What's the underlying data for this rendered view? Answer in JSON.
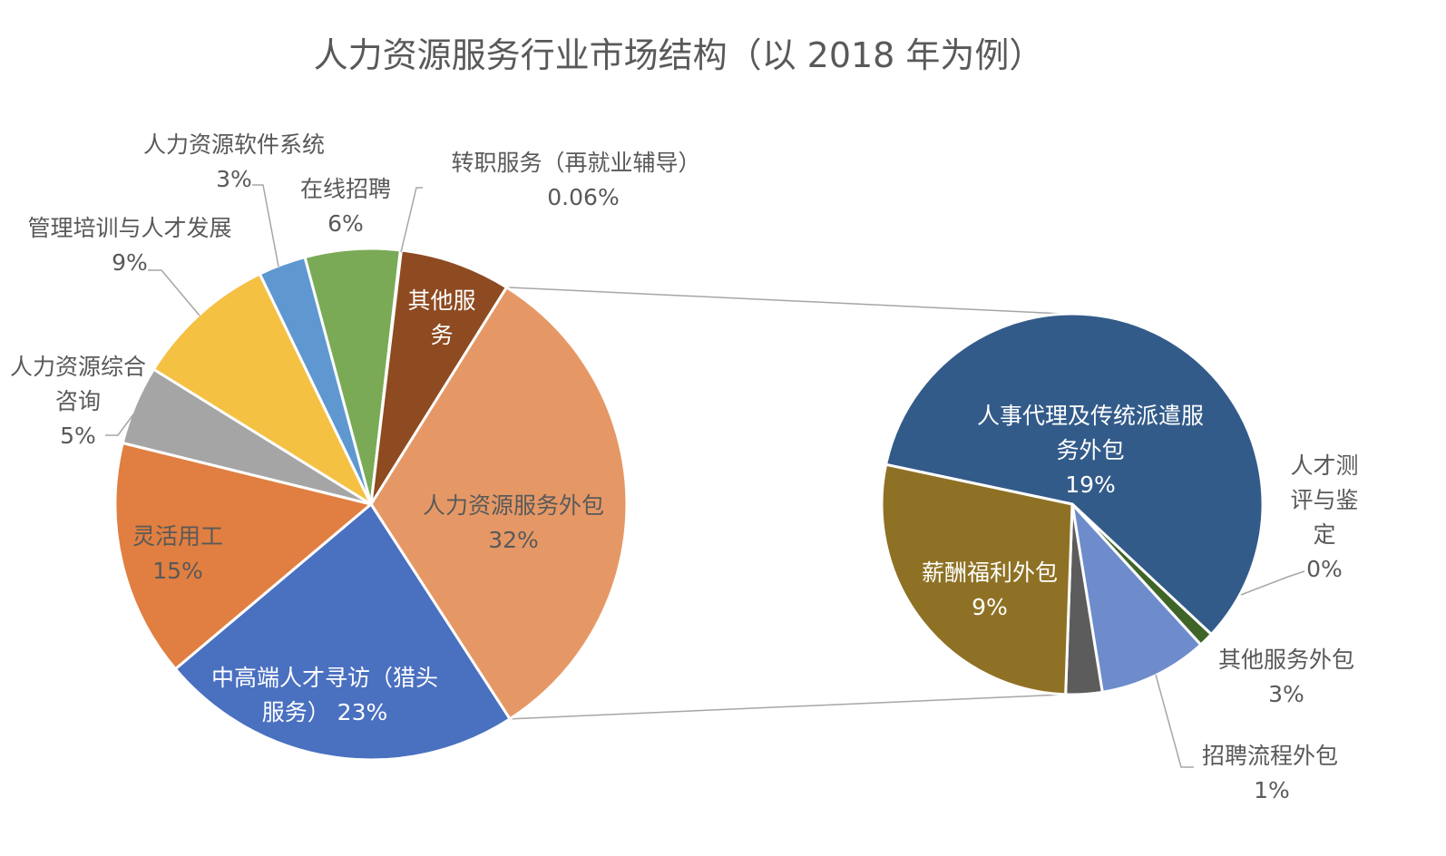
{
  "chart_data": {
    "type": "pie",
    "subtype": "bar-of-pie (pie of pie)",
    "title": "人力资源服务行业市场结构（以 2018 年为例）",
    "primary_pie": {
      "slices": [
        {
          "key": "hr_outsourcing",
          "label": "人力资源服务外包",
          "value": 32,
          "value_label": "32%",
          "color": "#E59866",
          "label_color": "#595959"
        },
        {
          "key": "headhunting",
          "label": "中高端人才寻访（猎头服务）",
          "value": 23,
          "value_label": "23%",
          "color": "#4A70C0",
          "label_color": "#ffffff"
        },
        {
          "key": "flexible",
          "label": "灵活用工",
          "value": 15,
          "value_label": "15%",
          "color": "#E07F41",
          "label_color": "#595959"
        },
        {
          "key": "consulting",
          "label": "人力资源综合咨询",
          "value": 5,
          "value_label": "5%",
          "color": "#A5A5A5",
          "label_color": "#595959"
        },
        {
          "key": "training",
          "label": "管理培训与人才发展",
          "value": 9,
          "value_label": "9%",
          "color": "#F4C143",
          "label_color": "#595959"
        },
        {
          "key": "software",
          "label": "人力资源软件系统",
          "value": 3,
          "value_label": "3%",
          "color": "#5F98D0",
          "label_color": "#595959"
        },
        {
          "key": "online",
          "label": "在线招聘",
          "value": 6,
          "value_label": "6%",
          "color": "#7AAA56",
          "label_color": "#595959"
        },
        {
          "key": "outplacement",
          "label": "转职服务（再就业辅导）",
          "value": 0.06,
          "value_label": "0.06%",
          "color": "#305E96",
          "label_color": "#595959"
        },
        {
          "key": "other",
          "label": "其他服务",
          "value": 7,
          "value_label": "",
          "color": "#8E4A20",
          "label_color": "#ffffff"
        }
      ]
    },
    "secondary_pie": {
      "slices": [
        {
          "key": "agency",
          "label": "人事代理及传统派遣服务外包",
          "value": 19,
          "value_label": "19%",
          "color": "#335B8A",
          "label_color": "#ffffff"
        },
        {
          "key": "assessment",
          "label": "人才测评与鉴定",
          "value": 0.4,
          "value_label": "0%",
          "color": "#3F6428",
          "label_color": "#595959"
        },
        {
          "key": "other_outsourcing",
          "label": "其他服务外包",
          "value": 3,
          "value_label": "3%",
          "color": "#6E8CCB",
          "label_color": "#595959"
        },
        {
          "key": "recruit_process",
          "label": "招聘流程外包",
          "value": 1,
          "value_label": "1%",
          "color": "#5C5C5C",
          "label_color": "#595959"
        },
        {
          "key": "payroll",
          "label": "薪酬福利外包",
          "value": 9,
          "value_label": "9%",
          "color": "#8E7124",
          "label_color": "#ffffff"
        }
      ]
    },
    "legend": "none",
    "grid": false
  }
}
